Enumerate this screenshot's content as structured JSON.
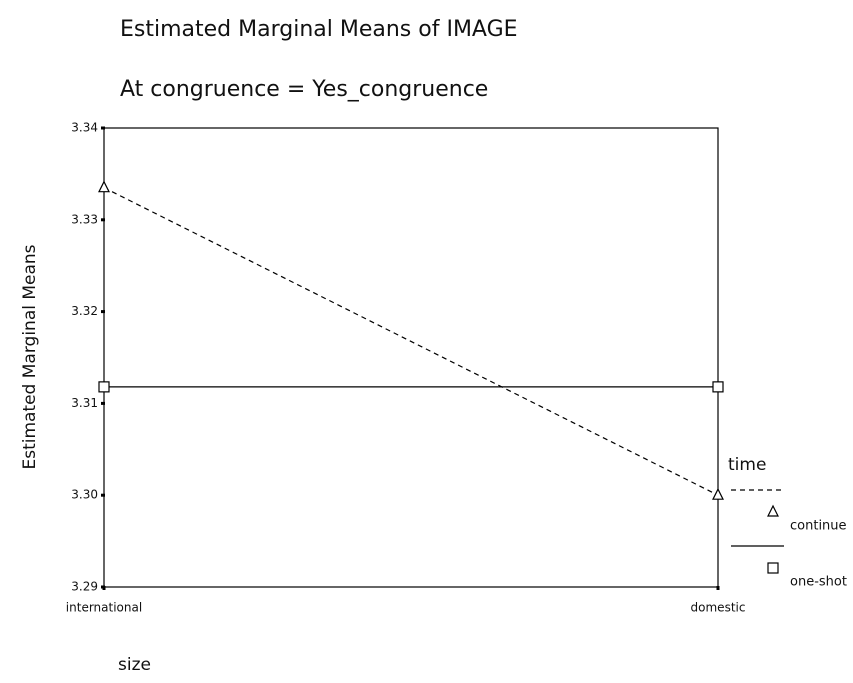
{
  "chart_data": {
    "type": "line",
    "title": "Estimated Marginal Means of IMAGE",
    "subtitle": "At congruence = Yes_congruence",
    "y_label": "Estimated Marginal Means",
    "x_label": "size",
    "legend_title": "time",
    "categories": [
      "international",
      "domestic"
    ],
    "series": [
      {
        "name": "continue",
        "color": "#000000",
        "line_style": "dashed",
        "marker": "triangle",
        "values": [
          3.3335,
          3.3
        ]
      },
      {
        "name": "one-shot",
        "color": "#000000",
        "line_style": "solid",
        "marker": "square",
        "values": [
          3.3118,
          3.3118
        ]
      }
    ],
    "ylim": [
      3.29,
      3.34
    ],
    "yticks": [
      3.29,
      {
        "value": 3.3,
        "label": "3.30"
      },
      3.31,
      3.32,
      3.33,
      3.34
    ],
    "legend": "right"
  }
}
